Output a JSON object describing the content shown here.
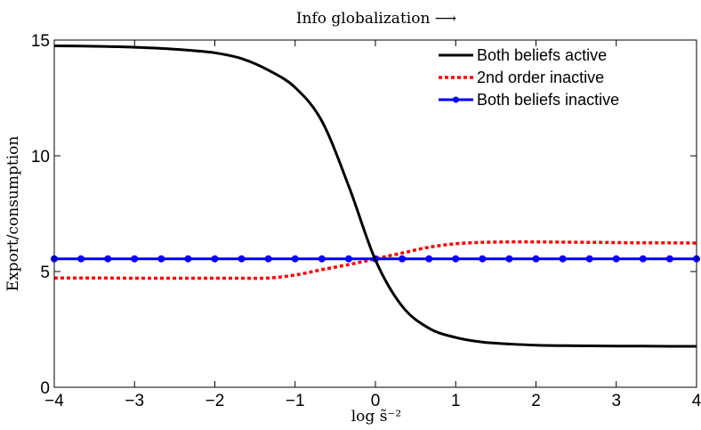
{
  "chart_data": {
    "type": "line",
    "title": "Info globalization ⟶",
    "xlabel": "log s̃⁻²",
    "ylabel": "Export/consumption",
    "xlim": [
      -4,
      4
    ],
    "ylim": [
      0,
      15
    ],
    "x_ticks": [
      "−4",
      "−3",
      "−2",
      "−1",
      "0",
      "1",
      "2",
      "3",
      "4"
    ],
    "y_ticks": [
      "0",
      "5",
      "10",
      "15"
    ],
    "legend_position": "top-right",
    "grid": false,
    "series": [
      {
        "name": "Both beliefs active",
        "color": "#000000",
        "style": "solid",
        "x": [
          -4,
          -3.667,
          -3.333,
          -3,
          -2.667,
          -2.333,
          -2,
          -1.667,
          -1.333,
          -1,
          -0.667,
          -0.333,
          0,
          0.333,
          0.667,
          1,
          1.333,
          1.667,
          2,
          2.333,
          2.667,
          3,
          3.333,
          3.667,
          4
        ],
        "y": [
          14.75,
          14.74,
          14.72,
          14.69,
          14.64,
          14.56,
          14.45,
          14.2,
          13.7,
          12.95,
          11.5,
          8.7,
          5.5,
          3.5,
          2.55,
          2.15,
          1.95,
          1.87,
          1.82,
          1.8,
          1.79,
          1.78,
          1.78,
          1.77,
          1.77
        ]
      },
      {
        "name": "2nd order inactive",
        "color": "#ff0000",
        "style": "dotted",
        "x": [
          -4,
          -3.667,
          -3.333,
          -3,
          -2.667,
          -2.333,
          -2,
          -1.667,
          -1.333,
          -1,
          -0.667,
          -0.333,
          0,
          0.333,
          0.667,
          1,
          1.333,
          1.667,
          2,
          2.333,
          2.667,
          3,
          3.333,
          3.667,
          4
        ],
        "y": [
          4.72,
          4.72,
          4.72,
          4.71,
          4.71,
          4.71,
          4.71,
          4.71,
          4.72,
          4.85,
          5.08,
          5.3,
          5.55,
          5.8,
          6.05,
          6.2,
          6.26,
          6.28,
          6.28,
          6.27,
          6.26,
          6.25,
          6.24,
          6.24,
          6.23
        ]
      },
      {
        "name": "Both beliefs inactive",
        "color": "#0000ff",
        "style": "solid-markers",
        "x": [
          -4,
          -3.667,
          -3.333,
          -3,
          -2.667,
          -2.333,
          -2,
          -1.667,
          -1.333,
          -1,
          -0.667,
          -0.333,
          0,
          0.333,
          0.667,
          1,
          1.333,
          1.667,
          2,
          2.333,
          2.667,
          3,
          3.333,
          3.667,
          4
        ],
        "y": [
          5.55,
          5.55,
          5.55,
          5.55,
          5.55,
          5.55,
          5.55,
          5.55,
          5.55,
          5.55,
          5.55,
          5.55,
          5.55,
          5.55,
          5.55,
          5.55,
          5.55,
          5.55,
          5.55,
          5.55,
          5.55,
          5.55,
          5.55,
          5.55,
          5.55
        ]
      }
    ]
  }
}
